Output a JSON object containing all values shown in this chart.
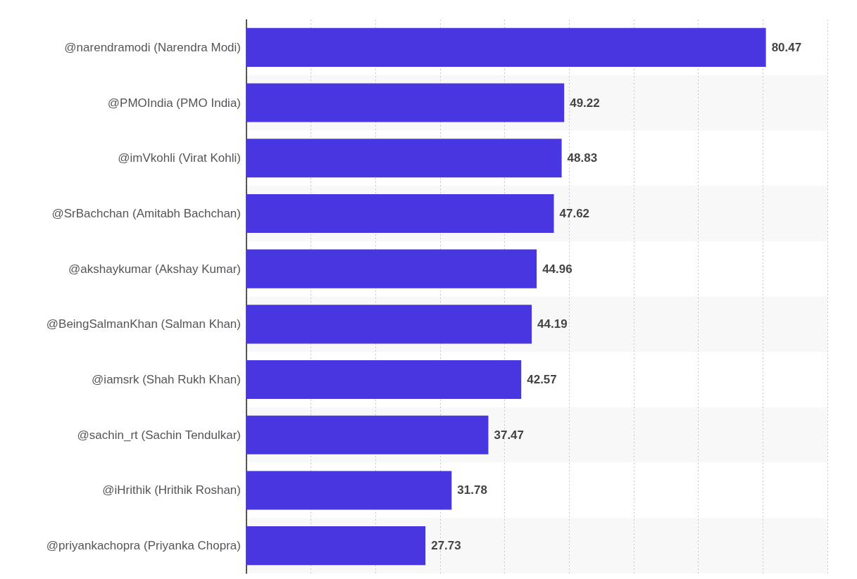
{
  "chart_data": {
    "type": "bar",
    "orientation": "horizontal",
    "categories": [
      "@narendramodi (Narendra Modi)",
      "@PMOIndia (PMO India)",
      "@imVkohli (Virat Kohli)",
      "@SrBachchan (Amitabh Bachchan)",
      "@akshaykumar (Akshay Kumar)",
      "@BeingSalmanKhan (Salman Khan)",
      "@iamsrk (Shah Rukh Khan)",
      "@sachin_rt (Sachin Tendulkar)",
      "@iHrithik (Hrithik Roshan)",
      "@priyankachopra (Priyanka Chopra)"
    ],
    "values": [
      80.47,
      49.22,
      48.83,
      47.62,
      44.96,
      44.19,
      42.57,
      37.47,
      31.78,
      27.73
    ],
    "color": "#4836e0",
    "xlim": [
      0,
      90
    ],
    "xticks": [
      {
        "value": 0,
        "label": null
      },
      {
        "value": 10,
        "label": null
      },
      {
        "value": 20,
        "label": null
      },
      {
        "value": 30,
        "label": null
      },
      {
        "value": 40,
        "label": null
      },
      {
        "value": 50,
        "label": null
      },
      {
        "value": 60,
        "label": null
      },
      {
        "value": 70,
        "label": null
      },
      {
        "value": 80,
        "label": null
      },
      {
        "value": 90,
        "label": null
      }
    ],
    "grid": "x",
    "tick_labels": "y",
    "data_labels": true
  }
}
